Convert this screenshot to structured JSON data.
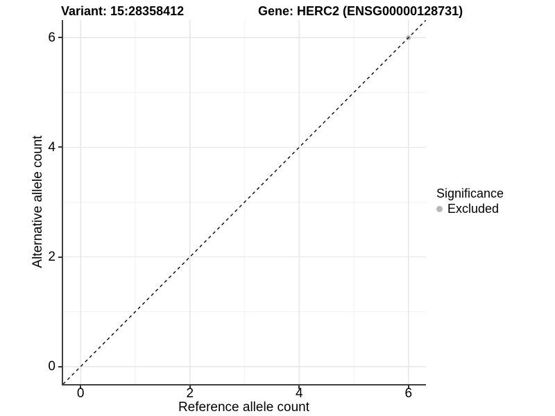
{
  "titles": {
    "variant": "Variant: 15:28358412",
    "gene": "Gene: HERC2 (ENSG00000128731)"
  },
  "chart_data": {
    "type": "scatter",
    "xlabel": "Reference allele count",
    "ylabel": "Alternative allele count",
    "xlim": [
      -0.32,
      6.32
    ],
    "ylim": [
      -0.32,
      6.32
    ],
    "x_ticks": [
      0,
      2,
      4,
      6
    ],
    "y_ticks": [
      0,
      2,
      4,
      6
    ],
    "x_minor_ticks": [
      1,
      3,
      5
    ],
    "y_minor_ticks": [
      1,
      3,
      5
    ],
    "grid": true,
    "series": [
      {
        "name": "Excluded",
        "color": "#b8b8b8",
        "points": [
          {
            "x": 6,
            "y": 6
          }
        ]
      }
    ],
    "reference_line": {
      "type": "identity",
      "style": "dashed",
      "color": "#000000",
      "from": -0.32,
      "to": 6.32
    },
    "legend": {
      "title": "Significance",
      "position": "right",
      "entries": [
        {
          "label": "Excluded",
          "color": "#b8b8b8"
        }
      ]
    }
  },
  "colors": {
    "background": "#ffffff",
    "grid_major": "#e6e6e6",
    "grid_minor": "#f2f2f2",
    "axis_line": "#3f3f3f",
    "tick_mark": "#333333",
    "text": "#000000"
  }
}
